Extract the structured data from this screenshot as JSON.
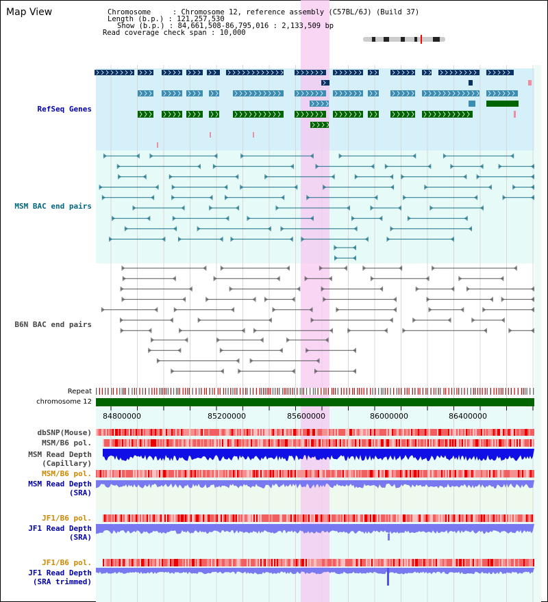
{
  "window": {
    "title": "Map View"
  },
  "info": {
    "chromosome_key": "Chromosome",
    "chromosome_value": "Chromosome 12, reference assembly (C57BL/6J) (Build 37)",
    "length_key": "Length (b.p.)",
    "length_value": "121,257,530",
    "show_key": "Show (b.p.)",
    "show_value": "84,661,508-86,795,016 : 2,133,509 bp",
    "coverage_key": "Read coverage check span",
    "coverage_value": "10,000",
    "separator": " : "
  },
  "ideogram": {
    "highlight_color": "#ff0000"
  },
  "tracks": {
    "refseq": {
      "label": "RefSeq Genes",
      "color": "#0000aa"
    },
    "msm_bac": {
      "label": "MSM BAC end pairs",
      "color": "#006680"
    },
    "b6n_bac": {
      "label": "B6N BAC end pairs",
      "color": "#444444"
    },
    "repeat": {
      "label": "Repeat"
    },
    "chromosome": {
      "label": "chromosome 12"
    },
    "dbsnp": {
      "label": "dbSNP(Mouse)"
    },
    "msm_b6_pol_1": {
      "label": "MSM/B6 pol."
    },
    "msm_depth_cap": {
      "label_line1": "MSM Read Depth",
      "label_line2": "(Capillary)"
    },
    "msm_b6_pol_2": {
      "label": "MSM/B6 pol.",
      "color": "#cc8800"
    },
    "msm_depth_sra": {
      "label_line1": "MSM Read Depth",
      "label_line2": "(SRA)",
      "color": "#0000aa"
    },
    "jf1_b6_pol_1": {
      "label": "JF1/B6 pol.",
      "color": "#cc8800"
    },
    "jf1_depth_sra": {
      "label_line1": "JF1 Read Depth",
      "label_line2": "(SRA)",
      "color": "#0000aa"
    },
    "jf1_b6_pol_2": {
      "label": "JF1/B6 pol.",
      "color": "#cc8800"
    },
    "jf1_depth_trim": {
      "label_line1": "JF1 Read Depth",
      "label_line2": "(SRA trimmed)",
      "color": "#0000aa"
    }
  },
  "axis": {
    "ticks": [
      "84800000",
      "85200000",
      "85600000",
      "86000000",
      "86400000"
    ]
  },
  "colors": {
    "highlight": "#f5c8f0",
    "refseq_bg": "#d6f0fa",
    "bac_bg": "#e6faf8",
    "gene_dark": "#0a3264",
    "gene_mid": "#3c8cb4",
    "gene_green": "#006400",
    "pink": "#f08ca0",
    "chromosome_bar": "#006400",
    "depth_dark": "#1010e6",
    "depth_light": "#7878f0"
  }
}
